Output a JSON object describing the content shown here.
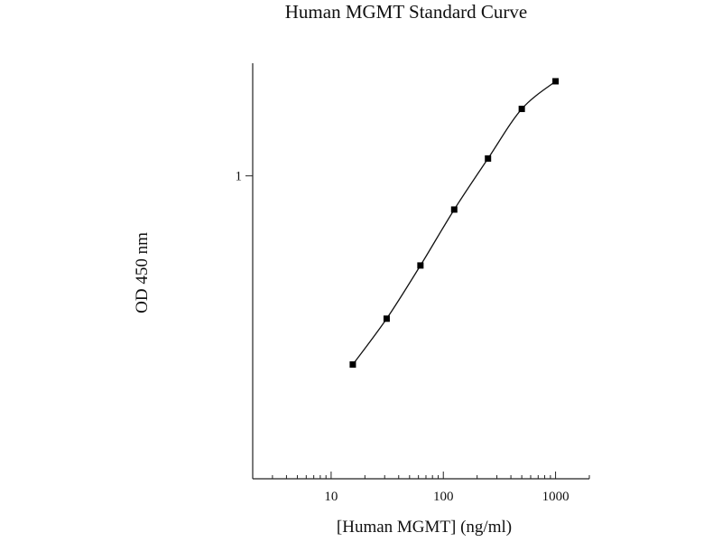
{
  "chart_data": {
    "type": "scatter",
    "title": "Human MGMT Standard Curve",
    "xlabel": "[Human MGMT] (ng/ml)",
    "ylabel": "OD 450 nm",
    "x_scale": "log",
    "y_scale": "log",
    "xlim": [
      2,
      2000
    ],
    "ylim": [
      0.12,
      2.2
    ],
    "x_ticks": [
      10,
      100,
      1000
    ],
    "x_tick_labels": [
      "10",
      "100",
      "1000"
    ],
    "y_ticks": [
      1
    ],
    "y_tick_labels": [
      "1"
    ],
    "grid": false,
    "legend": "none",
    "series": [
      {
        "x": [
          15.6,
          31.25,
          62.5,
          125,
          250,
          500,
          1000
        ],
        "y": [
          0.267,
          0.368,
          0.534,
          0.79,
          1.129,
          1.598,
          1.939
        ]
      }
    ],
    "fit_curve": true
  }
}
